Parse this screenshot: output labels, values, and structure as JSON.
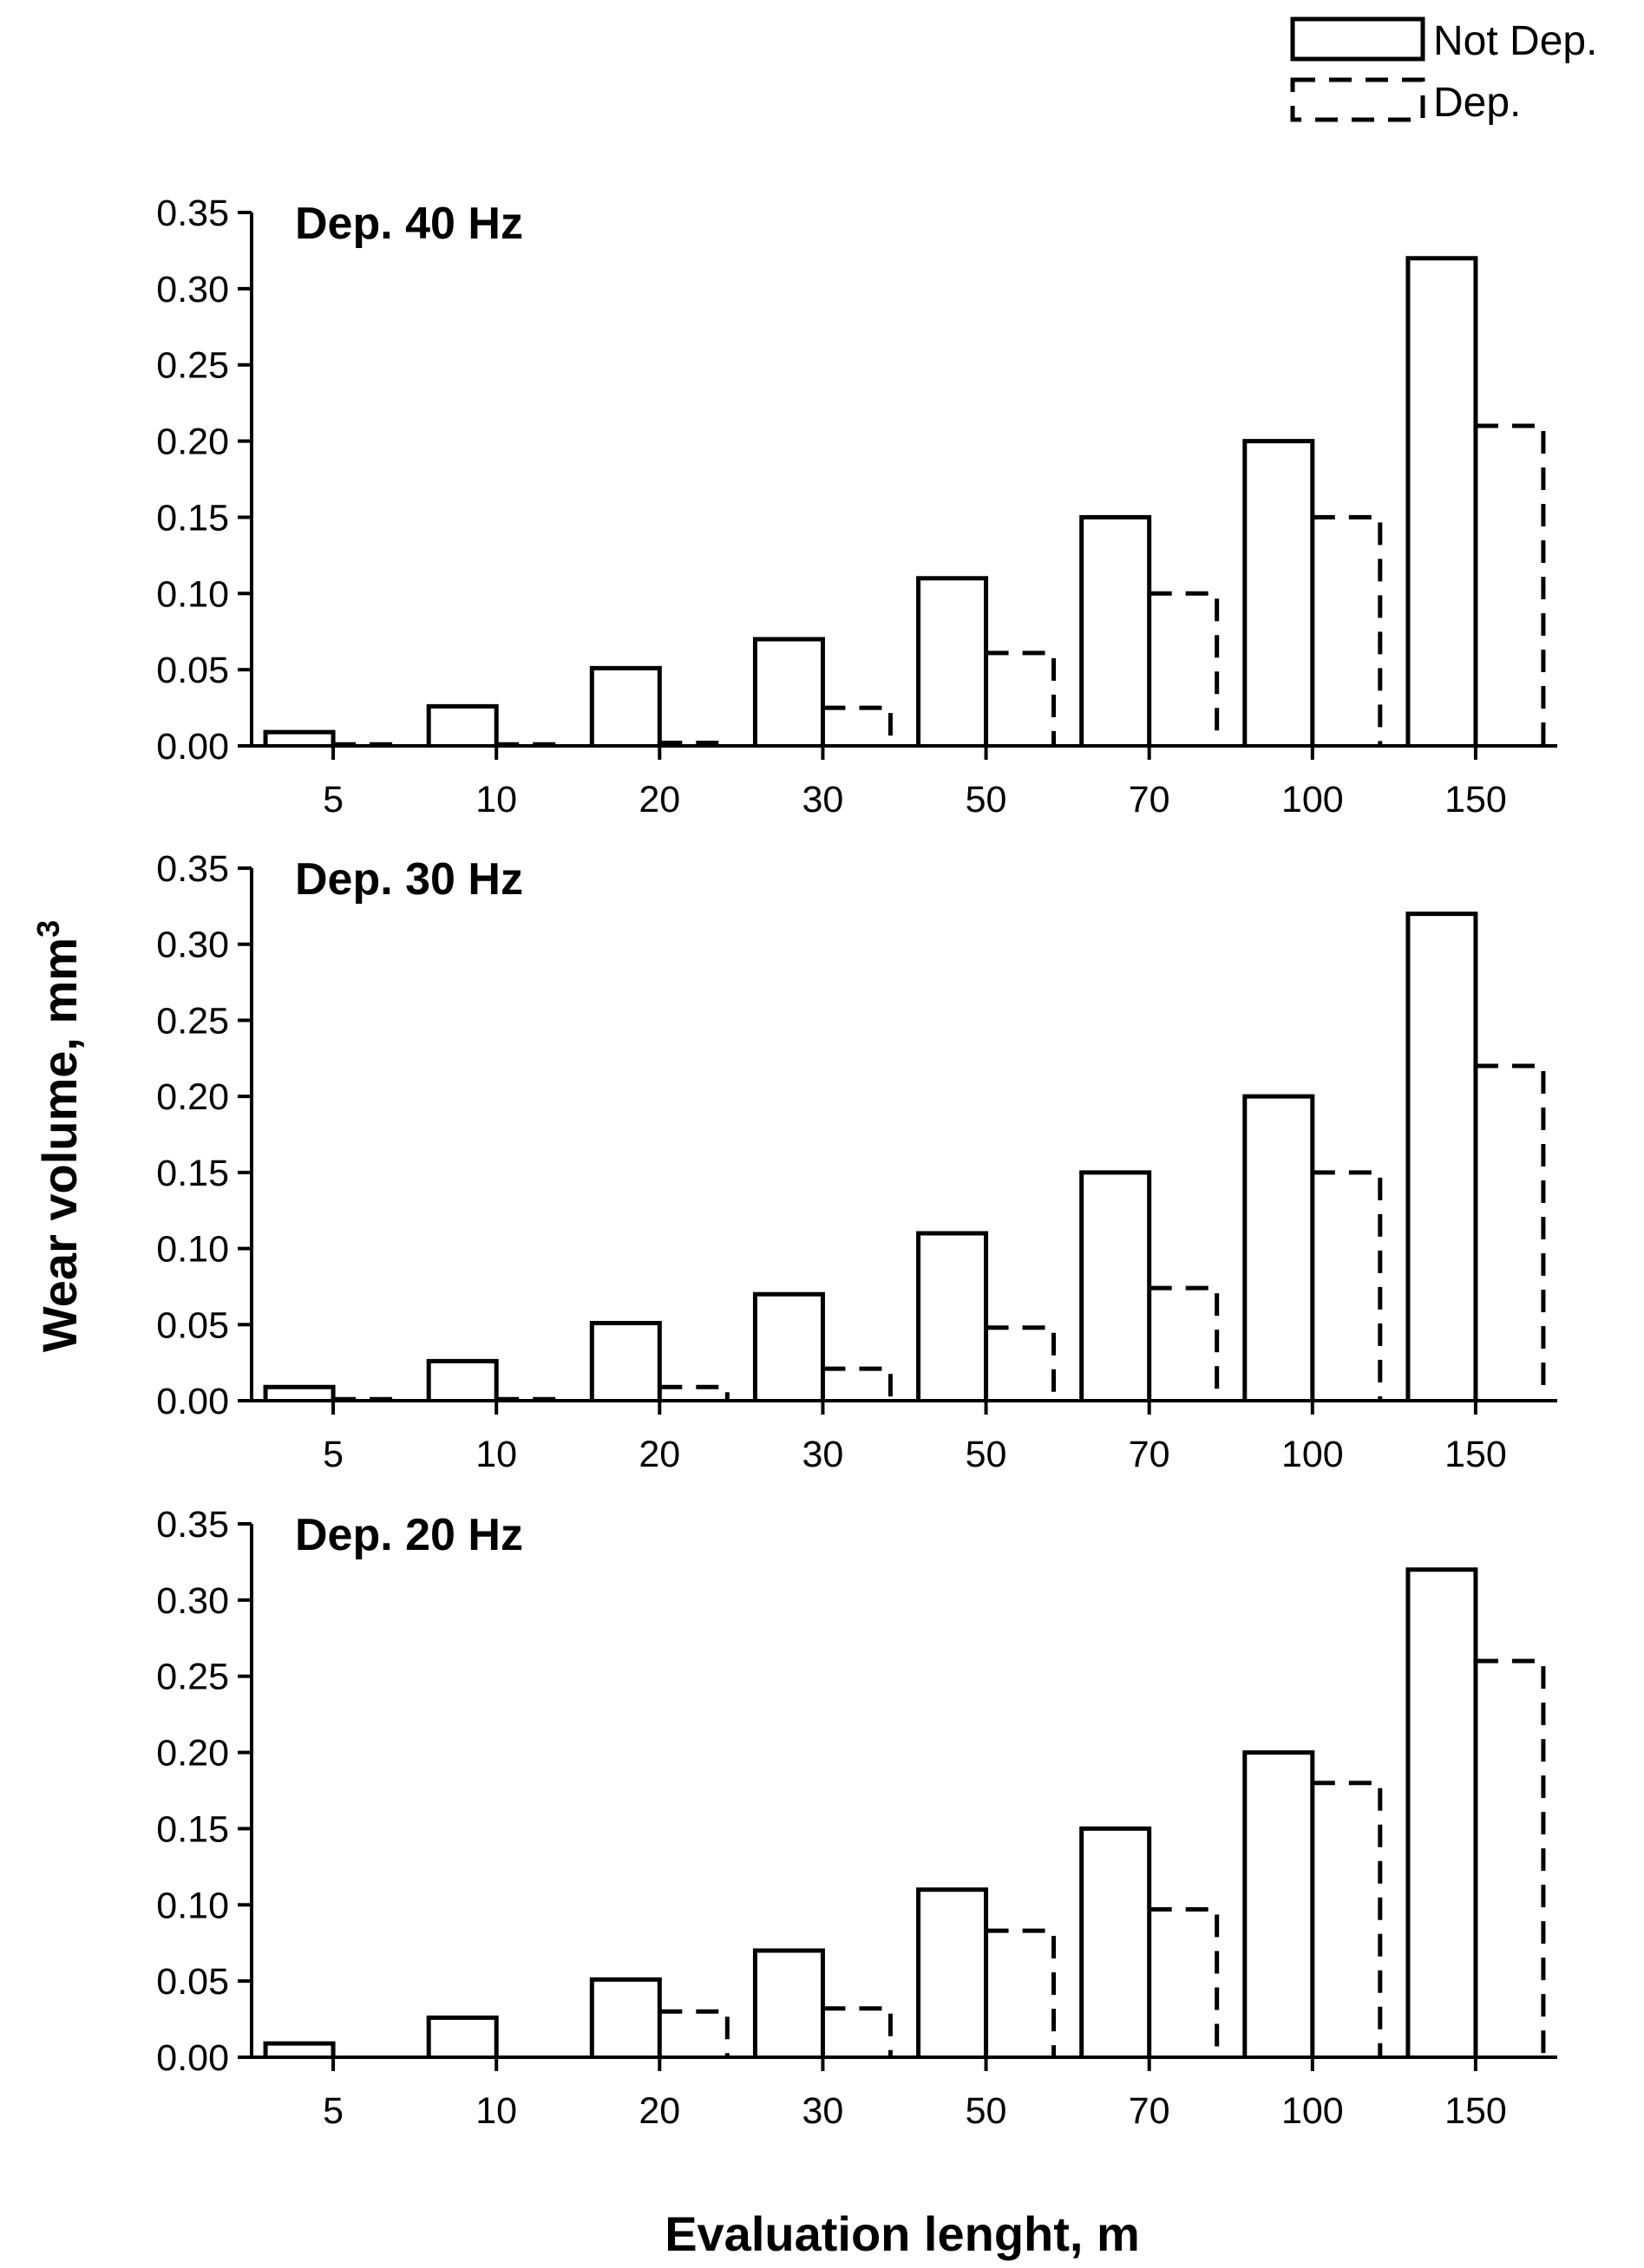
{
  "chart_data": {
    "type": "bar",
    "xlabel": "Evaluation lenght,  m",
    "ylabel": "Wear volume, mm",
    "ylabel_superscript": "3",
    "categories": [
      "5",
      "10",
      "20",
      "30",
      "50",
      "70",
      "100",
      "150"
    ],
    "ylim": [
      0,
      0.35
    ],
    "yticks": [
      "0.00",
      "0.05",
      "0.10",
      "0.15",
      "0.20",
      "0.25",
      "0.30",
      "0.35"
    ],
    "legend": {
      "position": "top-right",
      "entries": [
        {
          "label": "Not Dep.",
          "style": "solid"
        },
        {
          "label": "Dep.",
          "style": "dashed"
        }
      ]
    },
    "panels": [
      {
        "title": "Dep. 40 Hz",
        "series": [
          {
            "name": "Not Dep.",
            "values": [
              0.009,
              0.026,
              0.051,
              0.07,
              0.11,
              0.15,
              0.2,
              0.32
            ]
          },
          {
            "name": "Dep.",
            "values": [
              0.001,
              0.001,
              0.002,
              0.025,
              0.061,
              0.1,
              0.15,
              0.21
            ]
          }
        ]
      },
      {
        "title": "Dep. 30 Hz",
        "series": [
          {
            "name": "Not Dep.",
            "values": [
              0.009,
              0.026,
              0.051,
              0.07,
              0.11,
              0.15,
              0.2,
              0.32
            ]
          },
          {
            "name": "Dep.",
            "values": [
              0.001,
              0.001,
              0.009,
              0.021,
              0.048,
              0.074,
              0.15,
              0.22
            ]
          }
        ]
      },
      {
        "title": "Dep. 20 Hz",
        "series": [
          {
            "name": "Not Dep.",
            "values": [
              0.009,
              0.026,
              0.051,
              0.07,
              0.11,
              0.15,
              0.2,
              0.32
            ]
          },
          {
            "name": "Dep.",
            "values": [
              0,
              0,
              0.03,
              0.032,
              0.083,
              0.097,
              0.18,
              0.26
            ]
          }
        ]
      }
    ]
  }
}
